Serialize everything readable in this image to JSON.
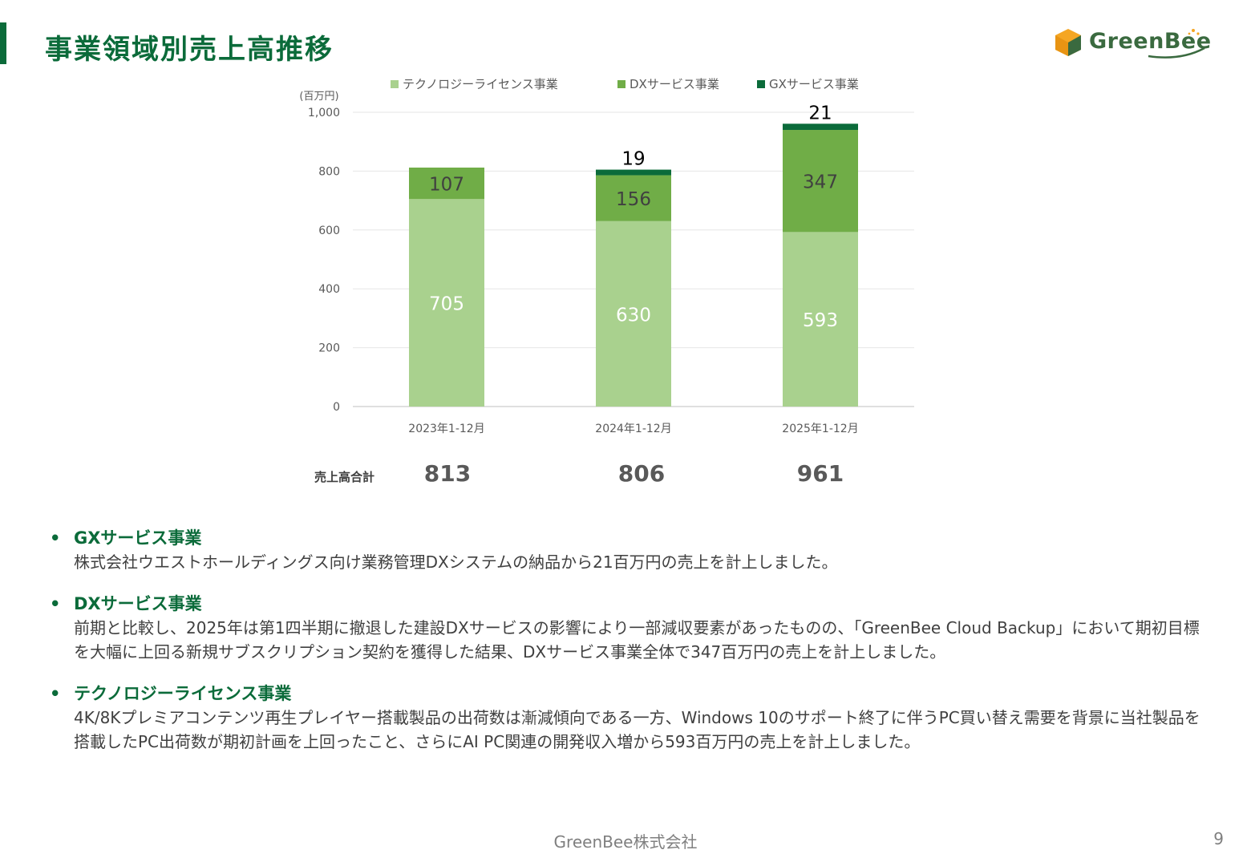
{
  "page": {
    "title": "事業領域別売上高推移",
    "logo_text": "GreenBee",
    "footer": "GreenBee株式会社",
    "page_number": "9"
  },
  "colors": {
    "accent": "#0b6b3a",
    "tech": "#a9d18e",
    "dx": "#70ad47",
    "gx": "#0b6b3a",
    "logo_orange": "#f5a623"
  },
  "chart_data": {
    "type": "bar",
    "stacked": true,
    "unit_label": "(百万円)",
    "categories": [
      "2023年1-12月",
      "2024年1-12月",
      "2025年1-12月"
    ],
    "series": [
      {
        "name": "テクノロジーライセンス事業",
        "values": [
          705,
          630,
          593
        ]
      },
      {
        "name": "DXサービス事業",
        "values": [
          107,
          156,
          347
        ]
      },
      {
        "name": "GXサービス事業",
        "values": [
          null,
          19,
          21
        ]
      }
    ],
    "ylim": [
      0,
      1000
    ],
    "yticks": [
      "0",
      "200",
      "400",
      "600",
      "800",
      "1,000"
    ],
    "grid": true,
    "legend": "top"
  },
  "totals": {
    "label": "売上高合計",
    "values": [
      "813",
      "806",
      "961"
    ]
  },
  "notes": [
    {
      "bullet": "•",
      "heading": "GXサービス事業",
      "body": "株式会社ウエストホールディングス向け業務管理DXシステムの納品から21百万円の売上を計上しました。"
    },
    {
      "bullet": "•",
      "heading": "DXサービス事業",
      "body": "前期と比較し、2025年は第1四半期に撤退した建設DXサービスの影響により一部減収要素があったものの、「GreenBee Cloud Backup」において期初目標を大幅に上回る新規サブスクリプション契約を獲得した結果、DXサービス事業全体で347百万円の売上を計上しました。"
    },
    {
      "bullet": "•",
      "heading": "テクノロジーライセンス事業",
      "body": "4K/8Kプレミアコンテンツ再生プレイヤー搭載製品の出荷数は漸減傾向である一方、Windows 10のサポート終了に伴うPC買い替え需要を背景に当社製品を搭載したPC出荷数が期初計画を上回ったこと、さらにAI PC関連の開発収入増から593百万円の売上を計上しました。"
    }
  ]
}
